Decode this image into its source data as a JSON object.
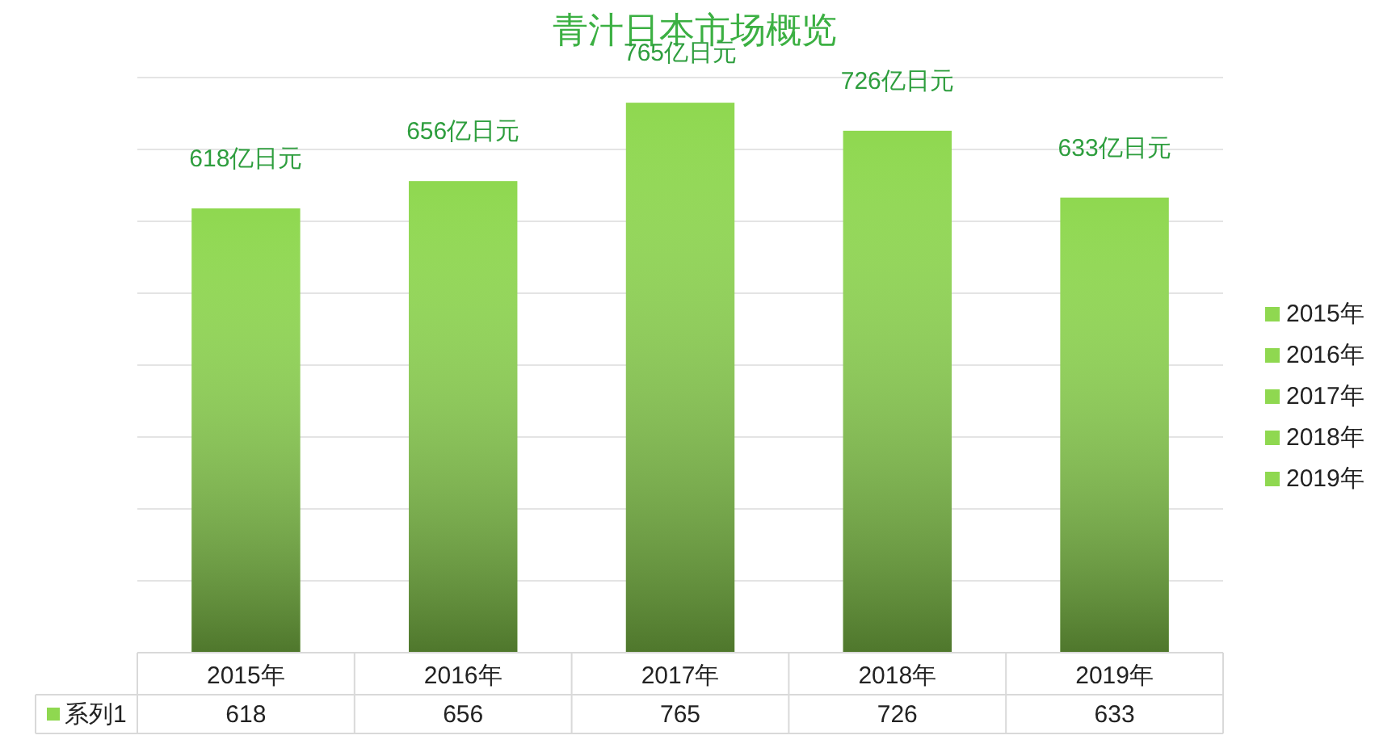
{
  "chart_data": {
    "type": "bar",
    "title": "青汁日本市场概览",
    "categories": [
      "2015年",
      "2016年",
      "2017年",
      "2018年",
      "2019年"
    ],
    "series": [
      {
        "name": "系列1",
        "color": "#8fd850",
        "colors": [
          "#8fd850",
          "#8fd850",
          "#8fd850",
          "#8fd850",
          "#8fd850"
        ],
        "values": [
          618,
          656,
          765,
          726,
          633
        ]
      }
    ],
    "annotations": [
      {
        "text": "618亿日元",
        "x": "2015年",
        "y": 618
      },
      {
        "text": "656亿日元",
        "x": "2016年",
        "y": 656
      },
      {
        "text": "765亿日元",
        "x": "2017年",
        "y": 765
      },
      {
        "text": "726亿日元",
        "x": "2018年",
        "y": 726
      },
      {
        "text": "633亿日元",
        "x": "2019年",
        "y": 633
      }
    ],
    "ylim": [
      0,
      800
    ],
    "yticks": [
      {
        "value": 0,
        "label": null
      },
      {
        "value": 100,
        "label": null
      },
      {
        "value": 200,
        "label": null
      },
      {
        "value": 300,
        "label": null
      },
      {
        "value": 400,
        "label": null
      },
      {
        "value": 500,
        "label": null
      },
      {
        "value": 600,
        "label": null
      },
      {
        "value": 700,
        "label": null
      },
      {
        "value": 800,
        "label": null
      }
    ],
    "tick_labels": "x",
    "grid": "y",
    "legend": "bottom left",
    "data_labels": true
  }
}
